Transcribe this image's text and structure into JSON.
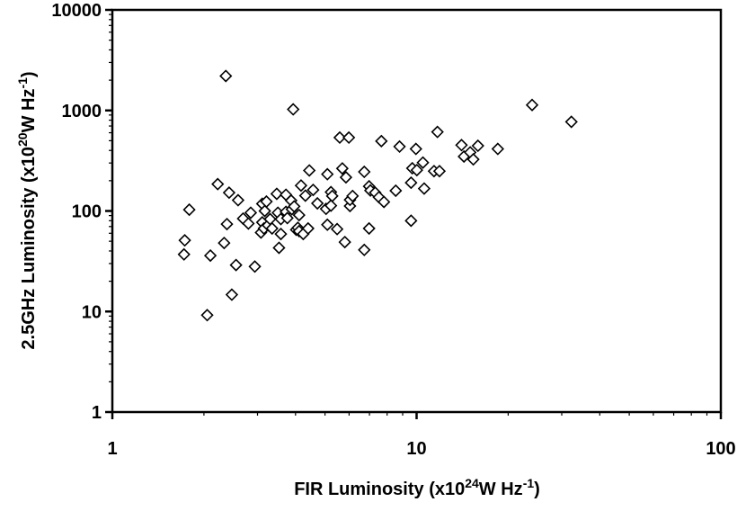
{
  "chart_data": {
    "type": "scatter",
    "xscale": "log",
    "yscale": "log",
    "xlim": [
      1,
      100
    ],
    "ylim": [
      1,
      10000
    ],
    "x_ticks": [
      "1",
      "10",
      "100"
    ],
    "y_ticks": [
      "1",
      "10",
      "100",
      "1000",
      "10000"
    ],
    "xlabel": {
      "pre": "FIR Luminosity (x10",
      "sup1": "24",
      "mid": "W Hz",
      "sup2": "-1",
      "post": ")"
    },
    "ylabel": {
      "pre": "2.5GHz Luminosity (x10",
      "sup1": "20",
      "mid": "W Hz",
      "sup2": "-1",
      "post": ")"
    },
    "grid": false,
    "legend": "none",
    "marker": "open-diamond",
    "colors": {
      "marker": "#000000",
      "axis": "#000000",
      "background": "#ffffff"
    },
    "series": [
      {
        "points": [
          [
            1.72,
            37
          ],
          [
            1.73,
            51
          ],
          [
            1.79,
            103
          ],
          [
            2.05,
            9.2
          ],
          [
            2.1,
            36
          ],
          [
            2.22,
            185
          ],
          [
            2.33,
            48
          ],
          [
            2.36,
            2200
          ],
          [
            2.38,
            74
          ],
          [
            2.42,
            152
          ],
          [
            2.47,
            14.7
          ],
          [
            2.55,
            29
          ],
          [
            2.59,
            128
          ],
          [
            2.69,
            84
          ],
          [
            2.8,
            75
          ],
          [
            2.85,
            96
          ],
          [
            2.94,
            28
          ],
          [
            3.08,
            61
          ],
          [
            3.11,
            77
          ],
          [
            3.11,
            118
          ],
          [
            3.15,
            67
          ],
          [
            3.17,
            100
          ],
          [
            3.21,
            124
          ],
          [
            3.25,
            72
          ],
          [
            3.3,
            83
          ],
          [
            3.35,
            67
          ],
          [
            3.47,
            148
          ],
          [
            3.5,
            96
          ],
          [
            3.53,
            43
          ],
          [
            3.58,
            59
          ],
          [
            3.58,
            83
          ],
          [
            3.72,
            145
          ],
          [
            3.72,
            98
          ],
          [
            3.76,
            85
          ],
          [
            3.87,
            127
          ],
          [
            3.89,
            104
          ],
          [
            3.93,
            1025
          ],
          [
            3.96,
            111
          ],
          [
            4.02,
            65
          ],
          [
            4.07,
            68
          ],
          [
            4.11,
            91
          ],
          [
            4.11,
            63
          ],
          [
            4.17,
            179
          ],
          [
            4.24,
            59
          ],
          [
            4.31,
            142
          ],
          [
            4.4,
            67
          ],
          [
            4.44,
            253
          ],
          [
            4.57,
            162
          ],
          [
            4.72,
            119
          ],
          [
            5.04,
            105
          ],
          [
            5.09,
            232
          ],
          [
            5.09,
            73
          ],
          [
            5.23,
            154
          ],
          [
            5.23,
            113
          ],
          [
            5.28,
            141
          ],
          [
            5.48,
            66
          ],
          [
            5.59,
            537
          ],
          [
            5.7,
            265
          ],
          [
            5.81,
            49
          ],
          [
            5.86,
            216
          ],
          [
            5.99,
            537
          ],
          [
            6.04,
            112
          ],
          [
            6.04,
            129
          ],
          [
            6.16,
            141
          ],
          [
            6.73,
            245
          ],
          [
            6.73,
            41
          ],
          [
            6.98,
            176
          ],
          [
            6.98,
            67
          ],
          [
            7.05,
            160
          ],
          [
            7.31,
            152
          ],
          [
            7.52,
            137
          ],
          [
            7.66,
            495
          ],
          [
            7.81,
            123
          ],
          [
            8.54,
            159
          ],
          [
            8.79,
            437
          ],
          [
            9.59,
            191
          ],
          [
            9.59,
            80
          ],
          [
            9.68,
            266
          ],
          [
            9.95,
            414
          ],
          [
            10.02,
            255
          ],
          [
            10.49,
            303
          ],
          [
            10.59,
            167
          ],
          [
            11.41,
            249
          ],
          [
            11.71,
            611
          ],
          [
            11.89,
            249
          ],
          [
            14.05,
            452
          ],
          [
            14.31,
            348
          ],
          [
            15.0,
            383
          ],
          [
            15.36,
            326
          ],
          [
            15.91,
            445
          ],
          [
            18.49,
            414
          ],
          [
            23.97,
            1133
          ],
          [
            32.27,
            770
          ]
        ]
      }
    ]
  }
}
